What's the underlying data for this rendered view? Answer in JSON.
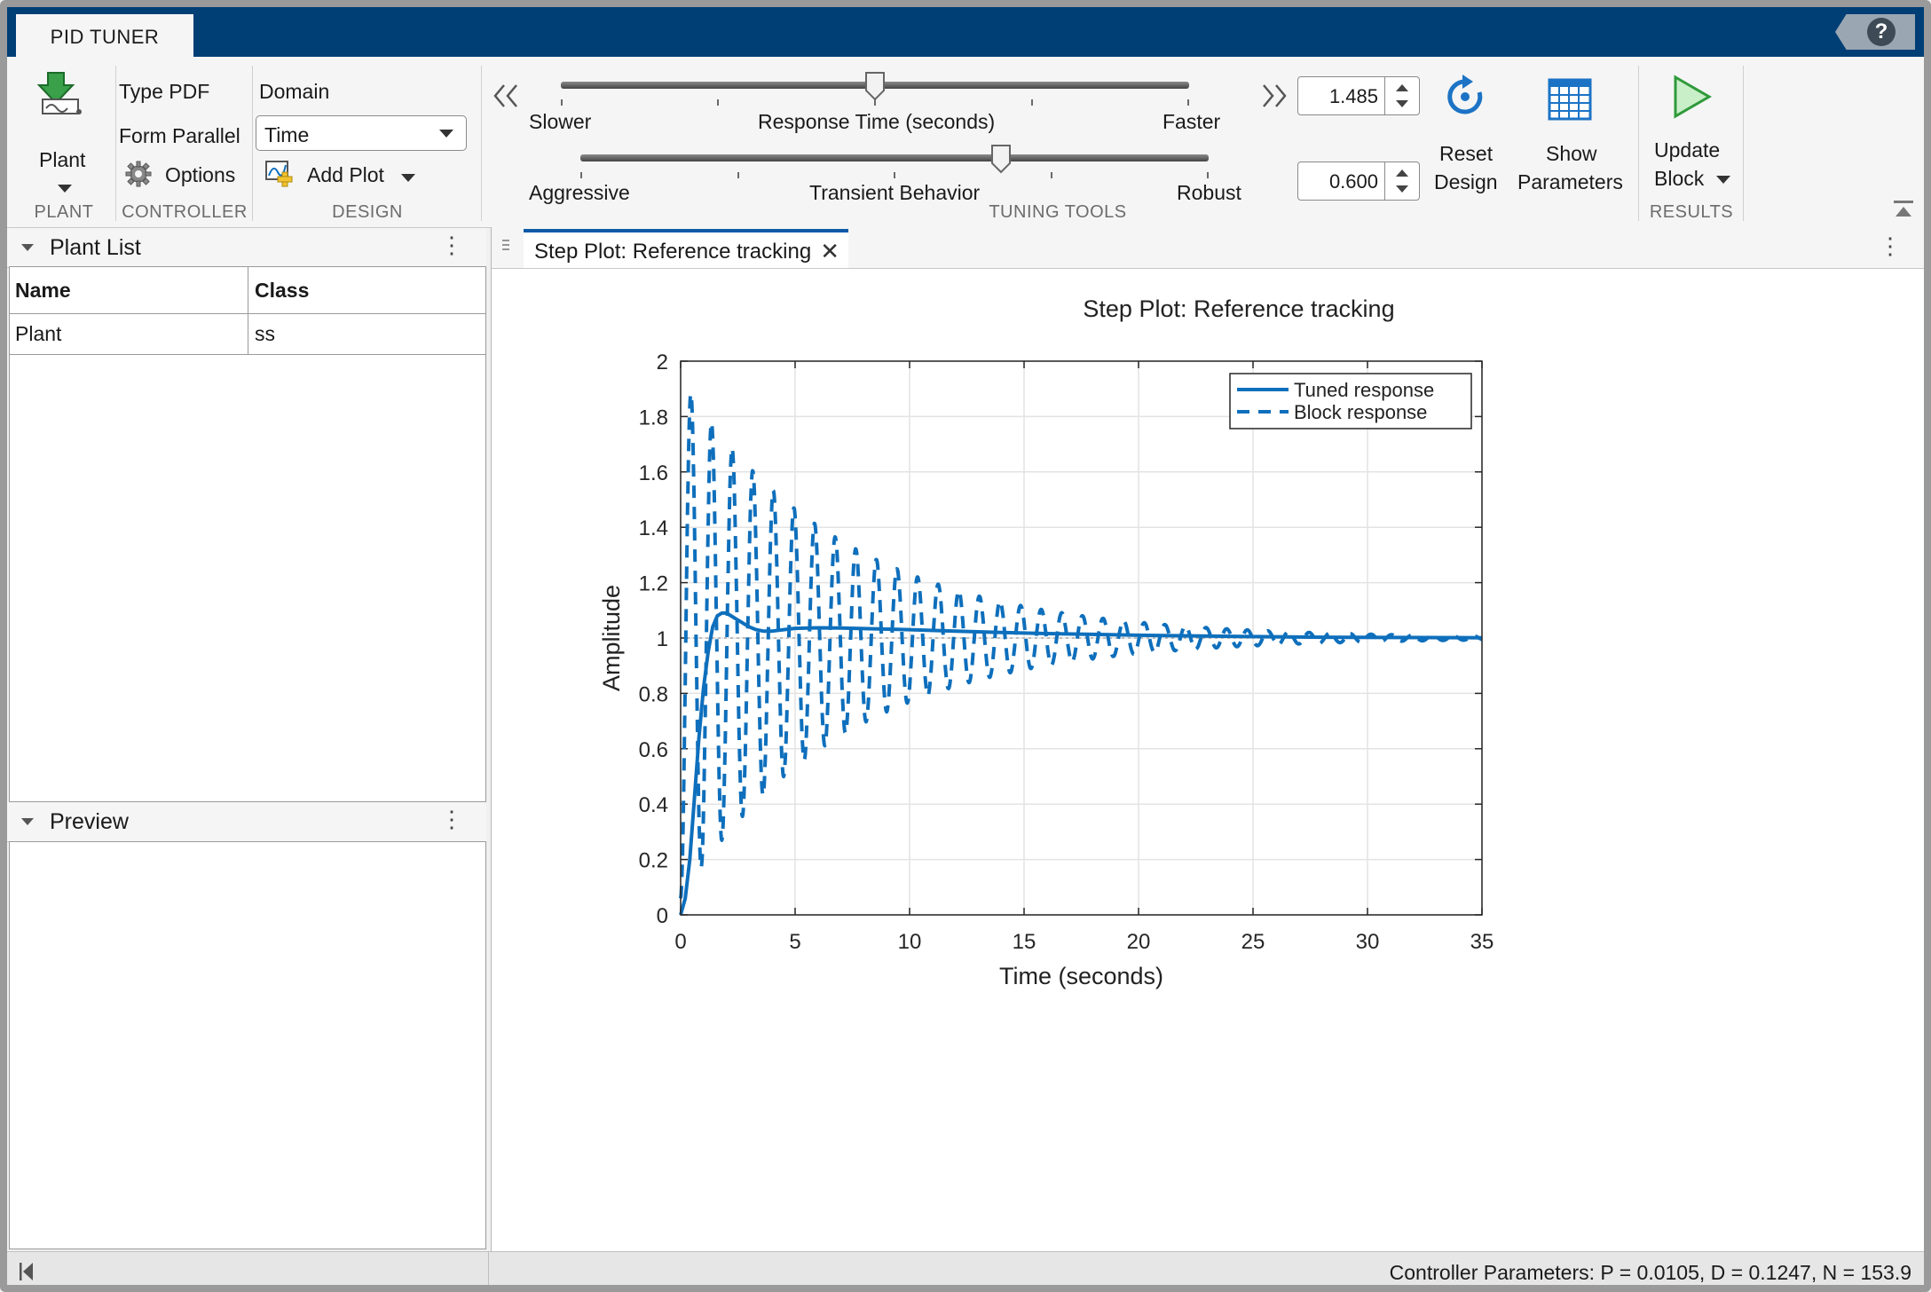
{
  "app": {
    "tab_title": "PID TUNER",
    "help": "?"
  },
  "toolstrip": {
    "plant": {
      "label": "Plant",
      "section": "PLANT"
    },
    "controller": {
      "type": "Type PDF",
      "form": "Form Parallel",
      "options": "Options",
      "section": "CONTROLLER"
    },
    "design": {
      "domain_label": "Domain",
      "domain_value": "Time",
      "add_plot": "Add Plot",
      "section": "DESIGN"
    },
    "tuning": {
      "response_time_label": "Response Time (seconds)",
      "slower": "Slower",
      "faster": "Faster",
      "transient_label": "Transient Behavior",
      "aggressive": "Aggressive",
      "robust": "Robust",
      "response_time_value": "1.485",
      "transient_value": "0.600",
      "response_time_level": 0.5,
      "transient_level": 0.67,
      "reset": [
        "Reset",
        "Design"
      ],
      "show": [
        "Show",
        "Parameters"
      ],
      "section": "TUNING TOOLS"
    },
    "results": {
      "update": [
        "Update",
        "Block"
      ],
      "section": "RESULTS"
    }
  },
  "plant_list": {
    "title": "Plant List",
    "columns": [
      "Name",
      "Class"
    ],
    "rows": [
      [
        "Plant",
        "ss"
      ]
    ]
  },
  "preview": {
    "title": "Preview"
  },
  "document": {
    "tab": "Step Plot: Reference tracking"
  },
  "status": "Controller Parameters: P = 0.0105, D = 0.1247, N = 153.9",
  "chart_data": {
    "type": "line",
    "title": "Step Plot: Reference tracking",
    "xlabel": "Time (seconds)",
    "ylabel": "Amplitude",
    "xlim": [
      0,
      35
    ],
    "ylim": [
      0,
      2
    ],
    "xticks": [
      "0",
      "5",
      "10",
      "15",
      "20",
      "25",
      "30",
      "35"
    ],
    "yticks": [
      "0",
      "0.2",
      "0.4",
      "0.6",
      "0.8",
      "1",
      "1.2",
      "1.4",
      "1.6",
      "1.8",
      "2"
    ],
    "grid": true,
    "legend_position": "top-right",
    "reference_line": 1,
    "color": "#0e6fbc",
    "series": [
      {
        "name": "Tuned response",
        "style": "solid",
        "x": [
          0,
          0.2,
          0.4,
          0.6,
          0.8,
          1.0,
          1.2,
          1.4,
          1.6,
          1.8,
          2.0,
          2.2,
          2.4,
          2.6,
          2.8,
          3.0,
          3.3,
          3.6,
          4.0,
          4.5,
          5.0,
          6.0,
          7.0,
          8.0,
          10.0,
          12.0,
          14.0,
          16.0,
          18.0,
          20.0,
          22.0,
          25.0,
          28.0,
          31.0,
          35.0
        ],
        "y": [
          0,
          0.06,
          0.2,
          0.42,
          0.64,
          0.82,
          0.95,
          1.04,
          1.08,
          1.09,
          1.09,
          1.08,
          1.07,
          1.06,
          1.05,
          1.04,
          1.03,
          1.025,
          1.025,
          1.03,
          1.035,
          1.037,
          1.036,
          1.034,
          1.03,
          1.025,
          1.02,
          1.016,
          1.013,
          1.01,
          1.008,
          1.005,
          1.003,
          1.002,
          1.001
        ]
      },
      {
        "name": "Block response",
        "style": "dashed",
        "envelope": {
          "initial_peak": 1.94,
          "initial_trough": 0.0,
          "decay_per_second": 0.14,
          "period_seconds": 0.9,
          "final_value": 1.0
        },
        "x": [
          0,
          0.45,
          0.9,
          1.35,
          1.8,
          2.25,
          2.7,
          3.15,
          3.6,
          4.05,
          4.5,
          4.95,
          5.4,
          5.85,
          6.3,
          6.75,
          7.2,
          7.65,
          8.1,
          8.55,
          9.0,
          9.45,
          9.9,
          10.35,
          10.8,
          11.25,
          11.7,
          12.15,
          12.6,
          13.05,
          13.5,
          13.95,
          14.4,
          14.85,
          15.3,
          15.75,
          16.2,
          16.65,
          17.1,
          17.55,
          18.0,
          18.45,
          18.9,
          19.35,
          19.8,
          20.25,
          20.7,
          21.15,
          21.6,
          22.05,
          22.5,
          22.95,
          23.4,
          23.85,
          24.3,
          24.75,
          25.2,
          25.65,
          26.1,
          26.55,
          27.0,
          27.45,
          27.9,
          28.35,
          28.8,
          29.25,
          29.7,
          30.15,
          30.6,
          31.05,
          31.5,
          31.95,
          32.4,
          32.85,
          33.3,
          33.75,
          34.2,
          34.65,
          35.0
        ],
        "y": [
          0.0,
          1.94,
          0.18,
          1.82,
          0.27,
          1.75,
          0.35,
          1.68,
          0.42,
          1.58,
          0.49,
          1.5,
          0.55,
          1.45,
          0.6,
          1.39,
          0.65,
          1.34,
          0.69,
          1.3,
          0.73,
          1.26,
          0.77,
          1.21,
          0.8,
          1.18,
          0.83,
          1.15,
          0.85,
          1.13,
          0.88,
          1.11,
          0.9,
          1.09,
          0.92,
          1.08,
          0.93,
          1.07,
          0.94,
          1.06,
          0.95,
          1.05,
          0.96,
          1.04,
          0.97,
          1.035,
          0.97,
          1.03,
          0.975,
          1.025,
          0.98,
          1.02,
          0.985,
          1.018,
          0.985,
          1.015,
          0.988,
          1.012,
          0.99,
          1.01,
          0.992,
          1.008,
          0.993,
          1.007,
          0.995,
          1.006,
          0.996,
          1.005,
          0.997,
          1.004,
          0.997,
          1.003,
          0.998,
          1.003,
          0.998,
          1.002,
          0.999,
          1.002,
          1.0
        ]
      }
    ]
  }
}
